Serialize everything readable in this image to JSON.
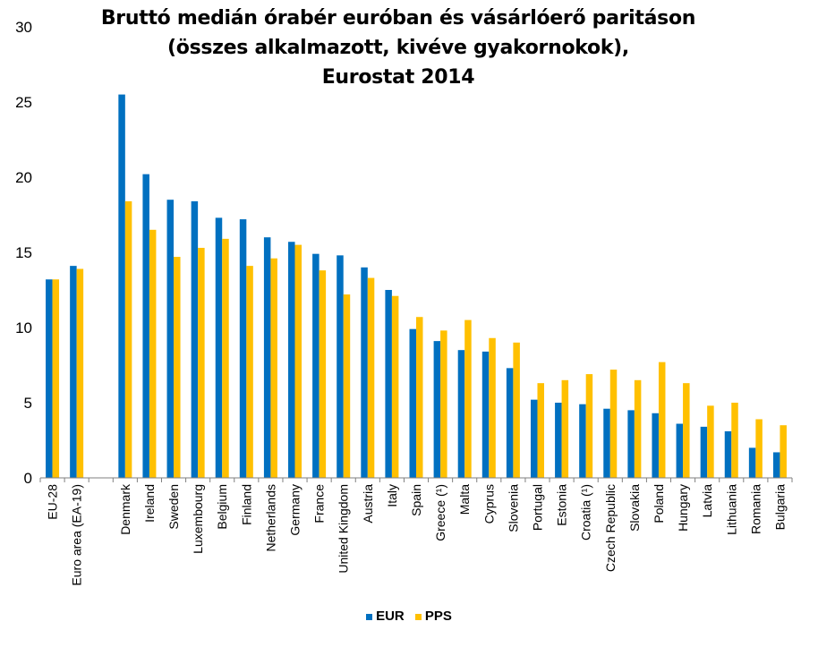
{
  "chart_data": {
    "type": "bar",
    "title_lines": [
      "Bruttó medián órabér euróban és vásárlóerő paritáson",
      "(összes alkalmazott, kivéve gyakornokok),",
      "Eurostat 2014"
    ],
    "categories": [
      "EU-28",
      "Euro area (EA-19)",
      "",
      "Denmark",
      "Ireland",
      "Sweden",
      "Luxembourg",
      "Belgium",
      "Finland",
      "Netherlands",
      "Germany",
      "France",
      "United Kingdom",
      "Austria",
      "Italy",
      "Spain",
      "Greece (¹)",
      "Malta",
      "Cyprus",
      "Slovenia",
      "Portugal",
      "Estonia",
      "Croatia (¹)",
      "Czech Republic",
      "Slovakia",
      "Poland",
      "Hungary",
      "Latvia",
      "Lithuania",
      "Romania",
      "Bulgaria"
    ],
    "series": [
      {
        "name": "EUR",
        "color": "#0070C0",
        "values": [
          13.2,
          14.1,
          null,
          25.5,
          20.2,
          18.5,
          18.4,
          17.3,
          17.2,
          16.0,
          15.7,
          14.9,
          14.8,
          14.0,
          12.5,
          9.9,
          9.1,
          8.5,
          8.4,
          7.3,
          5.2,
          5.0,
          4.9,
          4.6,
          4.5,
          4.3,
          3.6,
          3.4,
          3.1,
          2.0,
          1.7
        ]
      },
      {
        "name": "PPS",
        "color": "#FFC000",
        "values": [
          13.2,
          13.9,
          null,
          18.4,
          16.5,
          14.7,
          15.3,
          15.9,
          14.1,
          14.6,
          15.5,
          13.8,
          12.2,
          13.3,
          12.1,
          10.7,
          9.8,
          10.5,
          9.3,
          9.0,
          6.3,
          6.5,
          6.9,
          7.2,
          6.5,
          7.7,
          6.3,
          4.8,
          5.0,
          3.9,
          3.5
        ]
      }
    ],
    "y_ticks": [
      "0",
      "5",
      "10",
      "15",
      "20",
      "25",
      "30"
    ],
    "ylim": [
      0,
      30
    ],
    "grid": false,
    "legend_position": "bottom"
  }
}
